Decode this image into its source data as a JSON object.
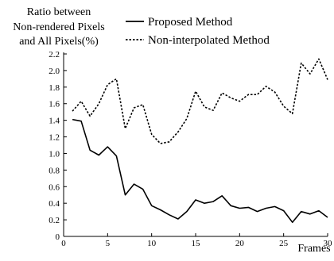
{
  "chart_data": {
    "type": "line",
    "title": "",
    "ylabel_lines": [
      "Ratio between",
      "Non-rendered Pixels",
      "and All Pixels(%)"
    ],
    "xlabel": "Frames",
    "xlim": [
      0,
      30
    ],
    "ylim": [
      0,
      2.2
    ],
    "xticks": [
      0,
      5,
      10,
      15,
      20,
      25,
      30
    ],
    "yticks": [
      0,
      0.2,
      0.4,
      0.6,
      0.8,
      1.0,
      1.2,
      1.4,
      1.6,
      1.8,
      2.0,
      2.2
    ],
    "ytick_labels": [
      "0",
      "0.2",
      "0.4",
      "0.6",
      "0.8",
      "1.0",
      "1.2",
      "1.4",
      "1.6",
      "1.8",
      "2.0",
      "2.2"
    ],
    "grid": false,
    "legend_position": "top",
    "x": [
      1,
      2,
      3,
      4,
      5,
      6,
      7,
      8,
      9,
      10,
      11,
      12,
      13,
      14,
      15,
      16,
      17,
      18,
      19,
      20,
      21,
      22,
      23,
      24,
      25,
      26,
      27,
      28,
      29,
      30
    ],
    "series": [
      {
        "name": "Proposed Method",
        "style": "solid",
        "color": "#000000",
        "values": [
          1.41,
          1.39,
          1.04,
          0.98,
          1.08,
          0.97,
          0.5,
          0.63,
          0.57,
          0.37,
          0.32,
          0.26,
          0.21,
          0.3,
          0.44,
          0.4,
          0.42,
          0.49,
          0.37,
          0.34,
          0.35,
          0.3,
          0.34,
          0.36,
          0.31,
          0.17,
          0.3,
          0.27,
          0.31,
          0.23
        ]
      },
      {
        "name": "Non-interpolated Method",
        "style": "dotted",
        "color": "#000000",
        "values": [
          1.51,
          1.63,
          1.45,
          1.6,
          1.83,
          1.9,
          1.3,
          1.55,
          1.59,
          1.23,
          1.12,
          1.14,
          1.26,
          1.42,
          1.75,
          1.56,
          1.52,
          1.73,
          1.67,
          1.63,
          1.71,
          1.71,
          1.81,
          1.74,
          1.57,
          1.48,
          2.09,
          1.96,
          2.14,
          1.89
        ]
      }
    ]
  }
}
